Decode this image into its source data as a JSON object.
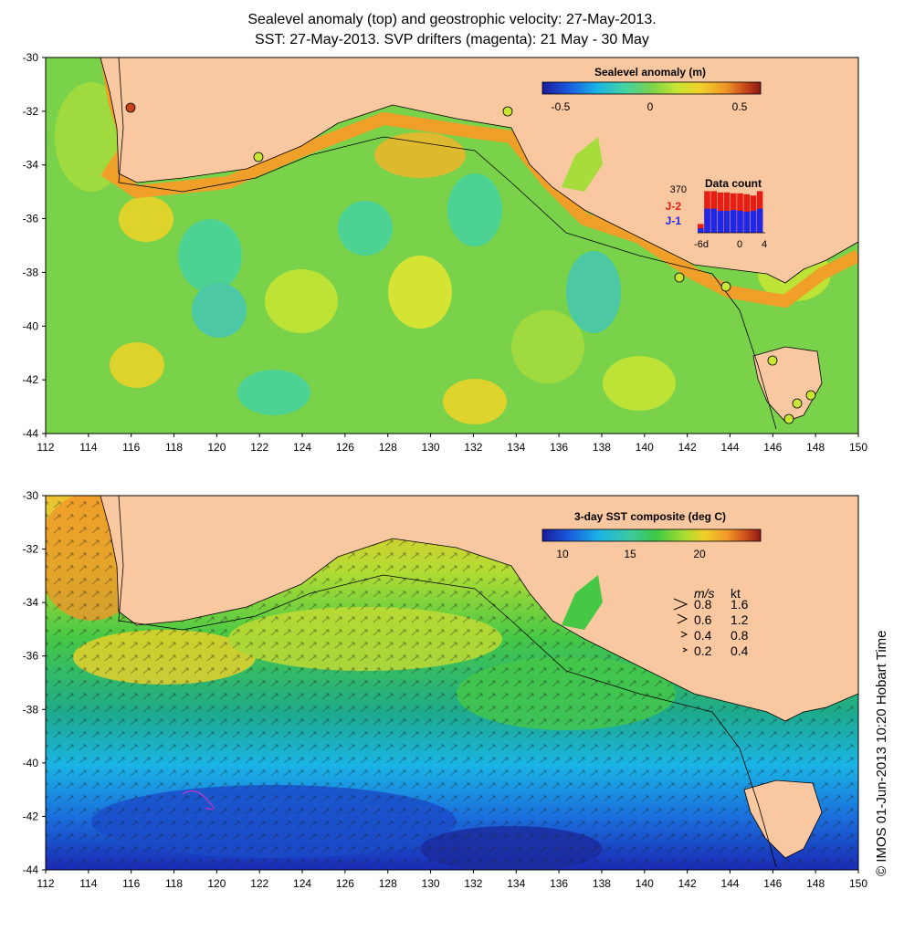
{
  "title_line1": "Sealevel anomaly (top) and geostrophic velocity: 27-May-2013.",
  "title_line2": "SST: 27-May-2013. SVP drifters (magenta): 21 May - 30 May",
  "x_ticks": [
    "112",
    "114",
    "116",
    "118",
    "120",
    "122",
    "124",
    "126",
    "128",
    "130",
    "132",
    "134",
    "136",
    "138",
    "140",
    "142",
    "144",
    "146",
    "148",
    "150"
  ],
  "y_ticks": [
    "-30",
    "-32",
    "-34",
    "-36",
    "-38",
    "-40",
    "-42",
    "-44"
  ],
  "top_panel": {
    "colorbar_title": "Sealevel anomaly (m)",
    "colorbar_ticks": [
      "-0.5",
      "0",
      "0.5"
    ],
    "data_count": {
      "title": "Data count",
      "max_label": "370",
      "series_j2": "J-2",
      "series_j1": "J-1",
      "x_labels": [
        "-6d",
        "0",
        "4"
      ],
      "j1_fraction": [
        0.1,
        0.55,
        0.55,
        0.5,
        0.5,
        0.52,
        0.5,
        0.48,
        0.5,
        0.55
      ],
      "j2_fraction": [
        0.2,
        0.95,
        0.95,
        0.92,
        0.92,
        0.9,
        0.9,
        0.88,
        0.85,
        0.95
      ]
    }
  },
  "bottom_panel": {
    "colorbar_title": "3-day SST composite (deg C)",
    "colorbar_ticks": [
      "10",
      "15",
      "20"
    ],
    "velocity_legend": {
      "header_ms": "m/s",
      "header_kt": "kt",
      "rows": [
        {
          "ms": "0.8",
          "kt": "1.6"
        },
        {
          "ms": "0.6",
          "kt": "1.2"
        },
        {
          "ms": "0.4",
          "kt": "0.8"
        },
        {
          "ms": "0.2",
          "kt": "0.4"
        }
      ]
    }
  },
  "copyright": "© IMOS 01-Jun-2013 10:20 Hobart Time",
  "colors": {
    "land": "#f9c8a0",
    "sla_ramp": [
      "#1a1a9c",
      "#1a5adc",
      "#1ab4e6",
      "#44d2a0",
      "#7ad24a",
      "#c8e632",
      "#f0d228",
      "#f09628",
      "#c8461a",
      "#8c1a14"
    ],
    "sst_ramp": [
      "#1a1a9c",
      "#1a5adc",
      "#1ab4e6",
      "#3cc8a0",
      "#3cc846",
      "#a0dc32",
      "#f0d228",
      "#f09628",
      "#c8461a",
      "#8c1a14"
    ],
    "j2": "#e61e14",
    "j1": "#1e28e6"
  }
}
